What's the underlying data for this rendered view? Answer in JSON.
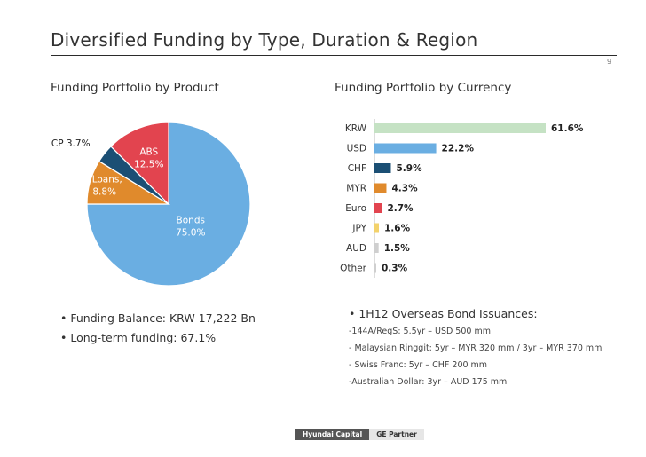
{
  "page": {
    "title": "Diversified Funding by Type, Duration & Region",
    "page_number": "9"
  },
  "left_panel": {
    "subtitle": "Funding Portfolio by Product",
    "bullets": [
      "• Funding Balance: KRW 17,222 Bn",
      "• Long-term funding: 67.1%"
    ]
  },
  "right_panel": {
    "subtitle": "Funding Portfolio by Currency",
    "issuance_title": "• 1H12 Overseas Bond Issuances:",
    "issuance_lines": [
      "-144A/RegS: 5.5yr – USD 500 mm",
      "- Malaysian Ringgit: 5yr –  MYR 320 mm / 3yr – MYR 370 mm",
      "- Swiss Franc: 5yr – CHF 200 mm",
      "-Australian Dollar: 3yr – AUD 175 mm"
    ]
  },
  "footer": {
    "brand": "Hyundai Capital",
    "partner": "GE Partner"
  },
  "chart_data": [
    {
      "type": "pie",
      "slices": [
        {
          "label": "Bonds",
          "value": 75.0,
          "display": "75.0%",
          "color": "#6aaee2"
        },
        {
          "label": "Loans,",
          "value": 8.8,
          "display": "8.8%",
          "color": "#e08a2c"
        },
        {
          "label": "CP 3.7%",
          "value": 3.7,
          "display": "",
          "color": "#1b4f74"
        },
        {
          "label": "ABS",
          "value": 12.5,
          "display": "12.5%",
          "color": "#e2444f"
        }
      ]
    },
    {
      "type": "bar",
      "orientation": "horizontal",
      "categories": [
        "KRW",
        "USD",
        "CHF",
        "MYR",
        "Euro",
        "JPY",
        "AUD",
        "Other"
      ],
      "values": [
        61.6,
        22.2,
        5.9,
        4.3,
        2.7,
        1.6,
        1.5,
        0.3
      ],
      "labels": [
        "61.6%",
        "22.2%",
        "5.9%",
        "4.3%",
        "2.7%",
        "1.6%",
        "1.5%",
        "0.3%"
      ],
      "colors": [
        "#c5e2c4",
        "#6aaee2",
        "#1b4f74",
        "#e08a2c",
        "#e2444f",
        "#f3d26b",
        "#cfcfcf",
        "#cfcfcf"
      ]
    }
  ]
}
